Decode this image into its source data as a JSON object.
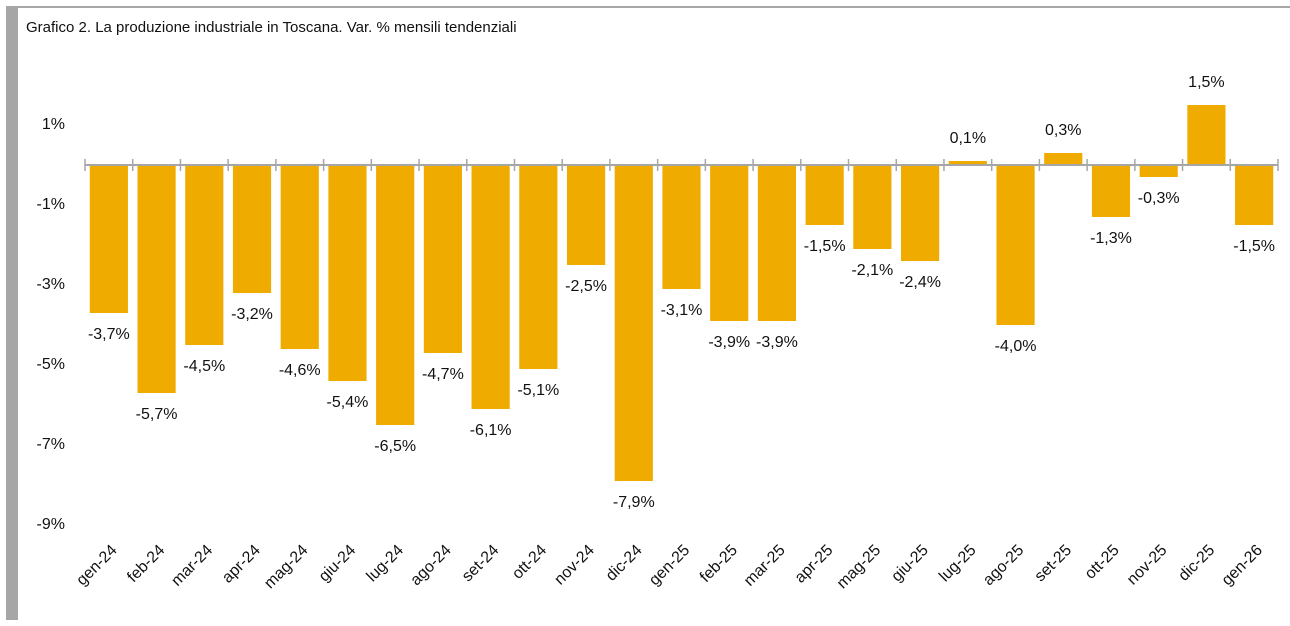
{
  "chart_data": {
    "type": "bar",
    "title": "Grafico 2. La produzione industriale in Toscana. Var. % mensili tendenziali",
    "categories": [
      "gen-24",
      "feb-24",
      "mar-24",
      "apr-24",
      "mag-24",
      "giu-24",
      "lug-24",
      "ago-24",
      "set-24",
      "ott-24",
      "nov-24",
      "dic-24",
      "gen-25",
      "feb-25",
      "mar-25",
      "apr-25",
      "mag-25",
      "giu-25",
      "lug-25",
      "ago-25",
      "set-25",
      "ott-25",
      "nov-25",
      "dic-25",
      "gen-26"
    ],
    "values": [
      -3.7,
      -5.7,
      -4.5,
      -3.2,
      -4.6,
      -5.4,
      -6.5,
      -4.7,
      -6.1,
      -5.1,
      -2.5,
      -7.9,
      -3.1,
      -3.9,
      -3.9,
      -1.5,
      -2.1,
      -2.4,
      0.1,
      -4.0,
      0.3,
      -1.3,
      -0.3,
      1.5,
      -1.5
    ],
    "value_labels": [
      "-3,7%",
      "-5,7%",
      "-4,5%",
      "-3,2%",
      "-4,6%",
      "-5,4%",
      "-6,5%",
      "-4,7%",
      "-6,1%",
      "-5,1%",
      "-2,5%",
      "-7,9%",
      "-3,1%",
      "-3,9%",
      "-3,9%",
      "-1,5%",
      "-2,1%",
      "-2,4%",
      "0,1%",
      "-4,0%",
      "0,3%",
      "-1,3%",
      "-0,3%",
      "1,5%",
      "-1,5%"
    ],
    "color": "#f0ab00",
    "ylim": [
      -9,
      3
    ],
    "yticks": [
      {
        "value": 1,
        "label": "1%"
      },
      {
        "value": -1,
        "label": "-1%"
      },
      {
        "value": -3,
        "label": "-3%"
      },
      {
        "value": -5,
        "label": "-5%"
      },
      {
        "value": -7,
        "label": "-7%"
      },
      {
        "value": -9,
        "label": "-9%"
      }
    ],
    "grid": false
  }
}
